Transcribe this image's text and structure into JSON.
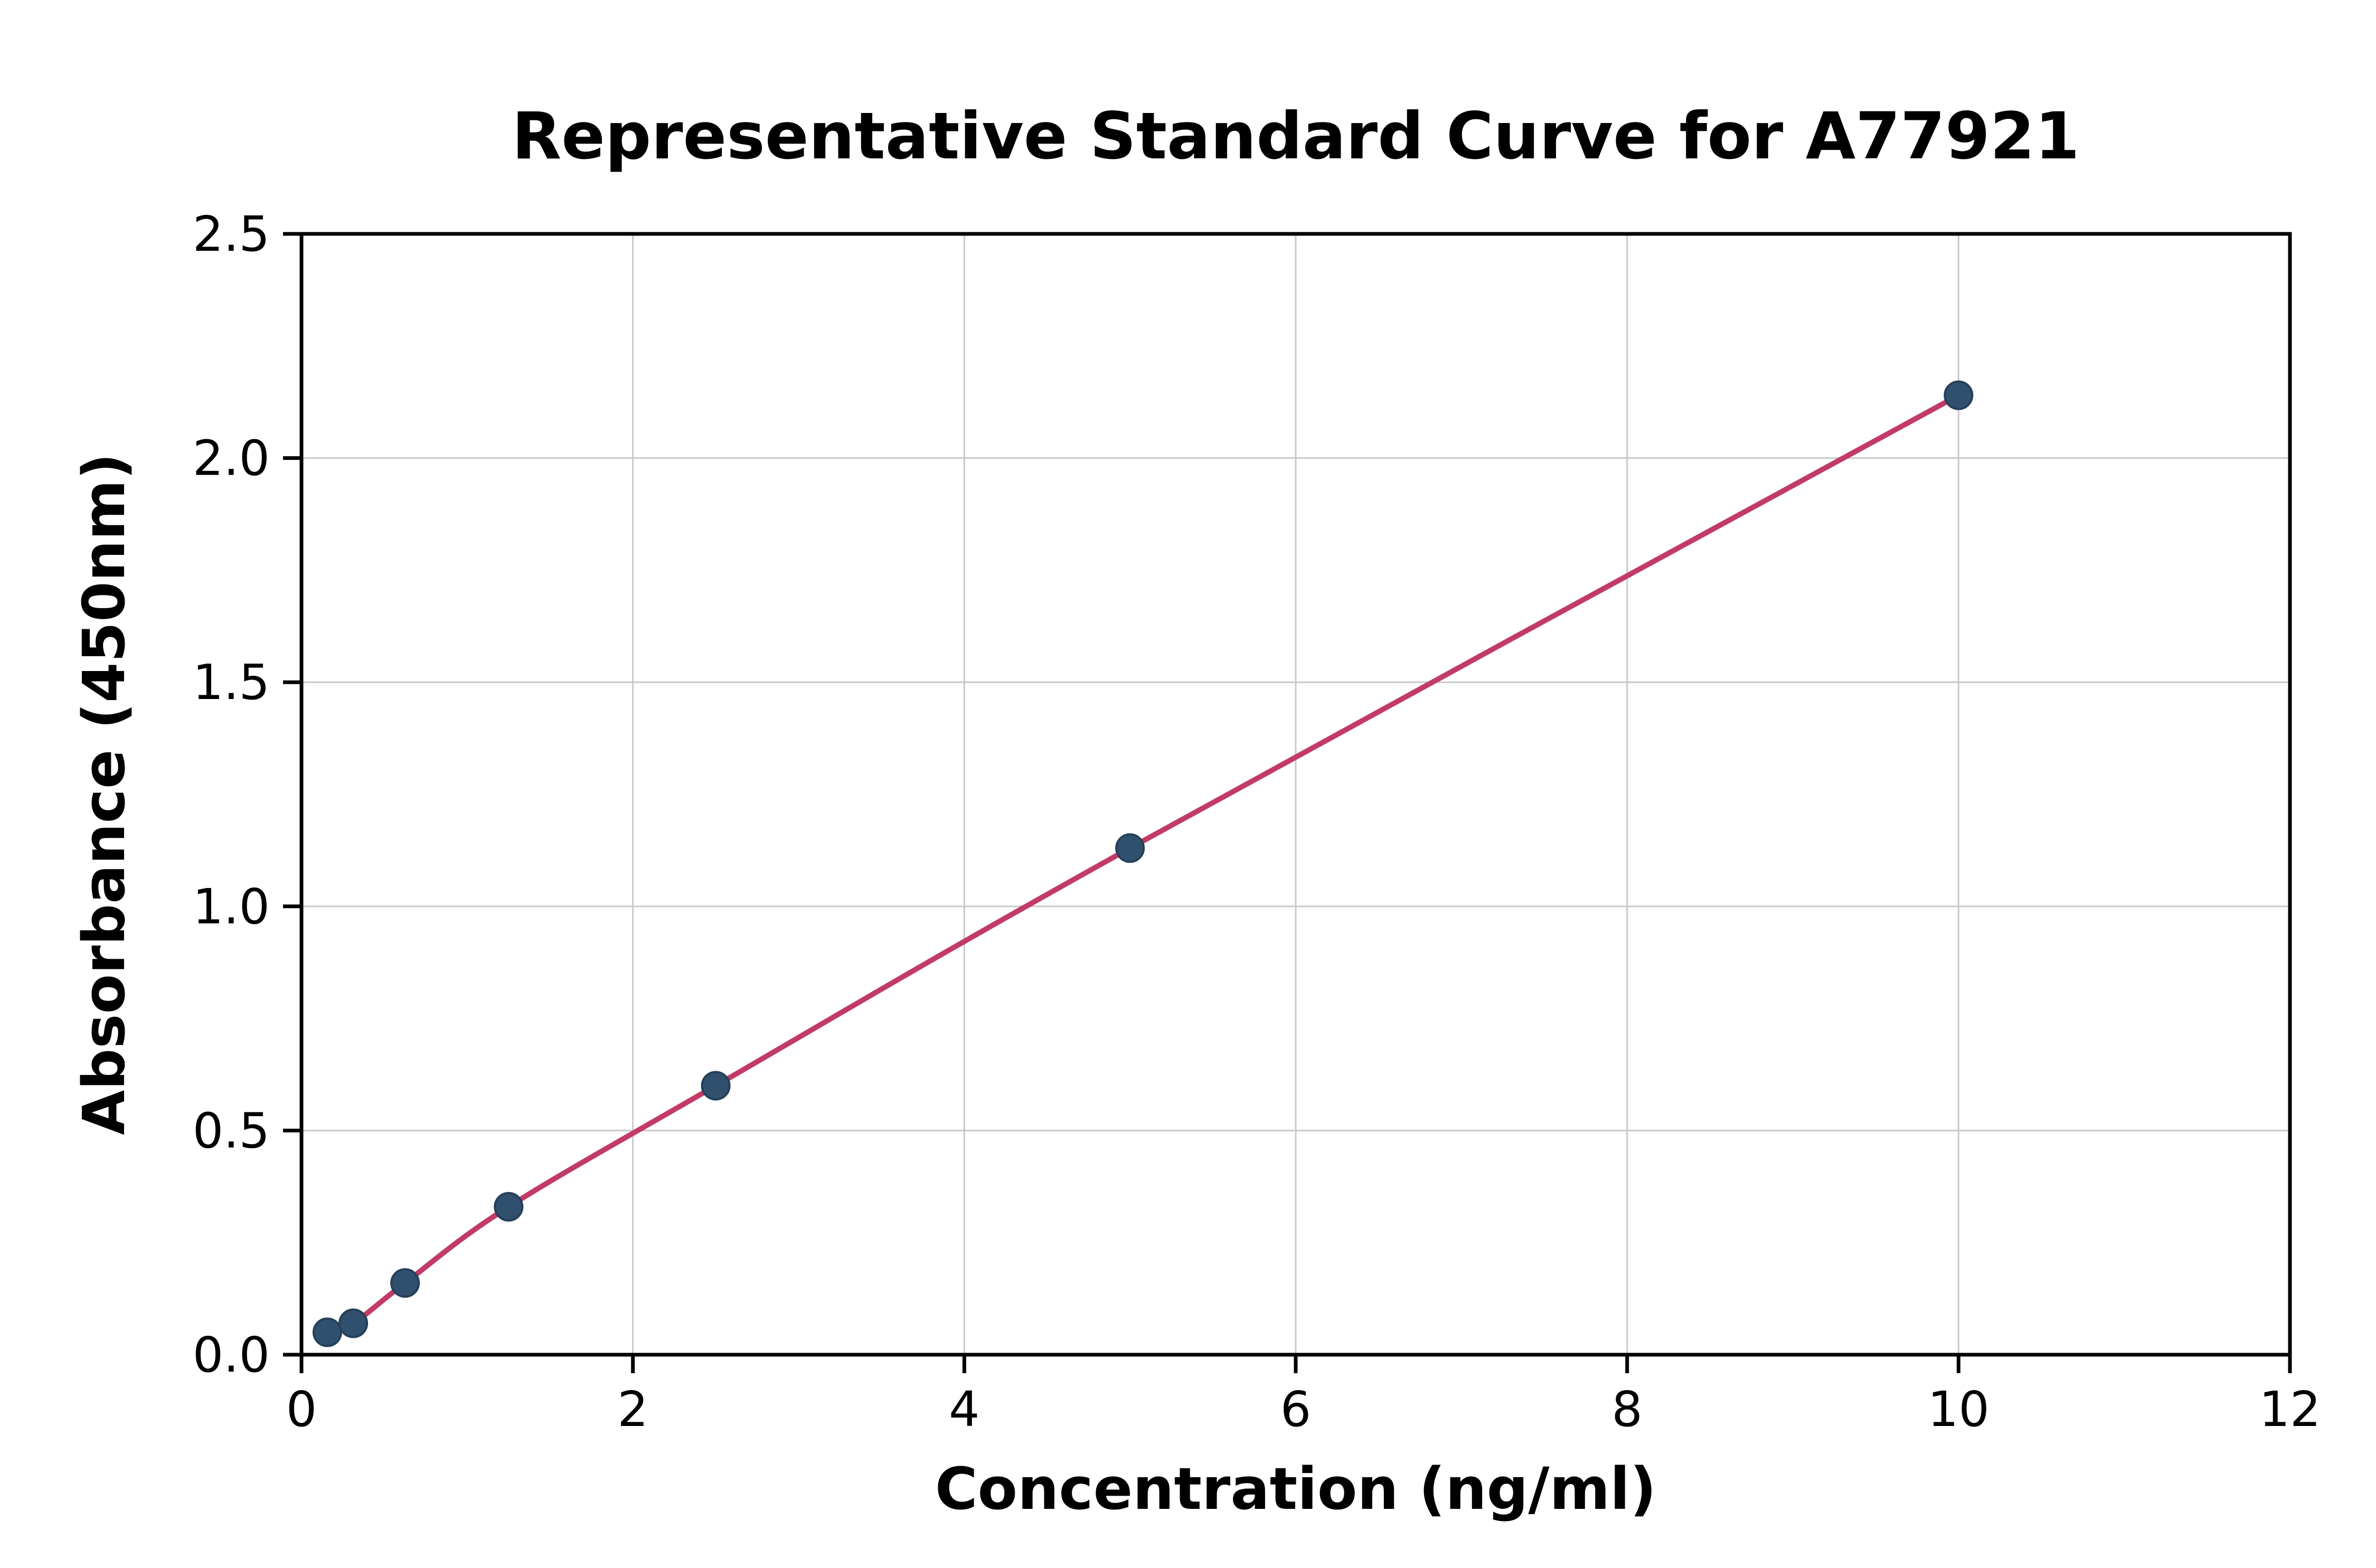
{
  "chart_data": {
    "type": "scatter",
    "title": "Representative Standard Curve for A77921",
    "xlabel": "Concentration (ng/ml)",
    "ylabel": "Absorbance (450nm)",
    "xlim": [
      0,
      12
    ],
    "ylim": [
      0,
      2.5
    ],
    "grid": true,
    "legend_position": "none",
    "xticks": {
      "values": [
        0,
        2,
        4,
        6,
        8,
        10,
        12
      ],
      "labels": [
        "0",
        "2",
        "4",
        "6",
        "8",
        "10",
        "12"
      ]
    },
    "yticks": {
      "values": [
        0,
        0.5,
        1.0,
        1.5,
        2.0,
        2.5
      ],
      "labels": [
        "0.0",
        "0.5",
        "1.0",
        "1.5",
        "2.0",
        "2.5"
      ]
    },
    "series": [
      {
        "name": "standard-curve",
        "x": [
          0.156,
          0.3125,
          0.625,
          1.25,
          2.5,
          5.0,
          10.0
        ],
        "y": [
          0.05,
          0.07,
          0.16,
          0.33,
          0.6,
          1.13,
          2.14
        ]
      }
    ],
    "colors": {
      "line": "#c23b66",
      "marker_fill": "#31506e",
      "marker_edge": "#24405a",
      "grid": "#c9c9c9",
      "spine": "#000000"
    }
  }
}
